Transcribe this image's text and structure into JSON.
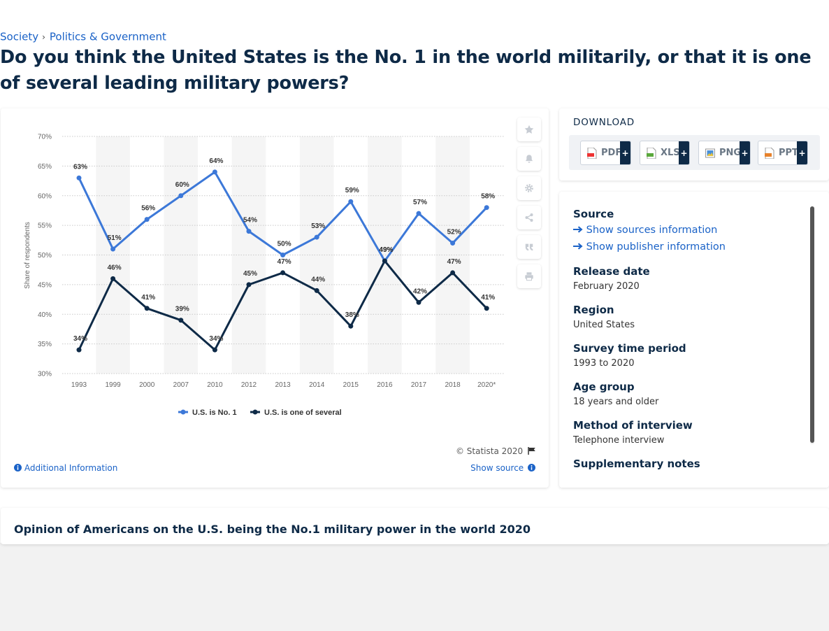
{
  "breadcrumb": {
    "items": [
      "Society",
      "Politics & Government"
    ],
    "separator": "›"
  },
  "page_title": "Do you think the United States is the No. 1 in the world militarily, or that it is one of several leading military powers?",
  "chart_panel": {
    "copyright": "© Statista 2020",
    "additional_info": "Additional Information",
    "show_source": "Show source"
  },
  "toolbar": {
    "icons": [
      "star-icon",
      "bell-icon",
      "gear-icon",
      "share-icon",
      "quote-icon",
      "print-icon"
    ]
  },
  "download": {
    "title": "DOWNLOAD",
    "buttons": [
      {
        "label": "PDF",
        "plus": "+"
      },
      {
        "label": "XLS",
        "plus": "+"
      },
      {
        "label": "PNG",
        "plus": "+"
      },
      {
        "label": "PPT",
        "plus": "+"
      }
    ]
  },
  "info": {
    "source_title": "Source",
    "show_sources": "Show sources information",
    "show_publisher": "Show publisher information",
    "release_date_title": "Release date",
    "release_date": "February 2020",
    "region_title": "Region",
    "region": "United States",
    "survey_period_title": "Survey time period",
    "survey_period": "1993 to 2020",
    "age_group_title": "Age group",
    "age_group": "18 years and older",
    "method_title": "Method of interview",
    "method": "Telephone interview",
    "supplementary_title": "Supplementary notes"
  },
  "related": {
    "title": "Opinion of Americans on the U.S. being the No.1 military power in the world 2020"
  },
  "colors": {
    "series1": "#3c78d8",
    "series2": "#0e2a47",
    "link": "#1a62c7",
    "band": "#f5f5f5"
  },
  "chart_data": {
    "type": "line",
    "ylabel": "Share of respondents",
    "xlabel": "",
    "categories": [
      "1993",
      "1999",
      "2000",
      "2007",
      "2010",
      "2012",
      "2013",
      "2014",
      "2015",
      "2016",
      "2017",
      "2018",
      "2020*"
    ],
    "ylim": [
      30,
      70
    ],
    "yticks": [
      "30%",
      "35%",
      "40%",
      "45%",
      "50%",
      "55%",
      "60%",
      "65%",
      "70%"
    ],
    "grid": true,
    "legend_position": "bottom-center",
    "series": [
      {
        "name": "U.S. is No. 1",
        "values": [
          63,
          51,
          56,
          60,
          64,
          54,
          50,
          53,
          59,
          49,
          57,
          52,
          58
        ]
      },
      {
        "name": "U.S. is one of several",
        "values": [
          34,
          46,
          41,
          39,
          34,
          45,
          47,
          44,
          38,
          49,
          42,
          47,
          41
        ]
      }
    ]
  }
}
